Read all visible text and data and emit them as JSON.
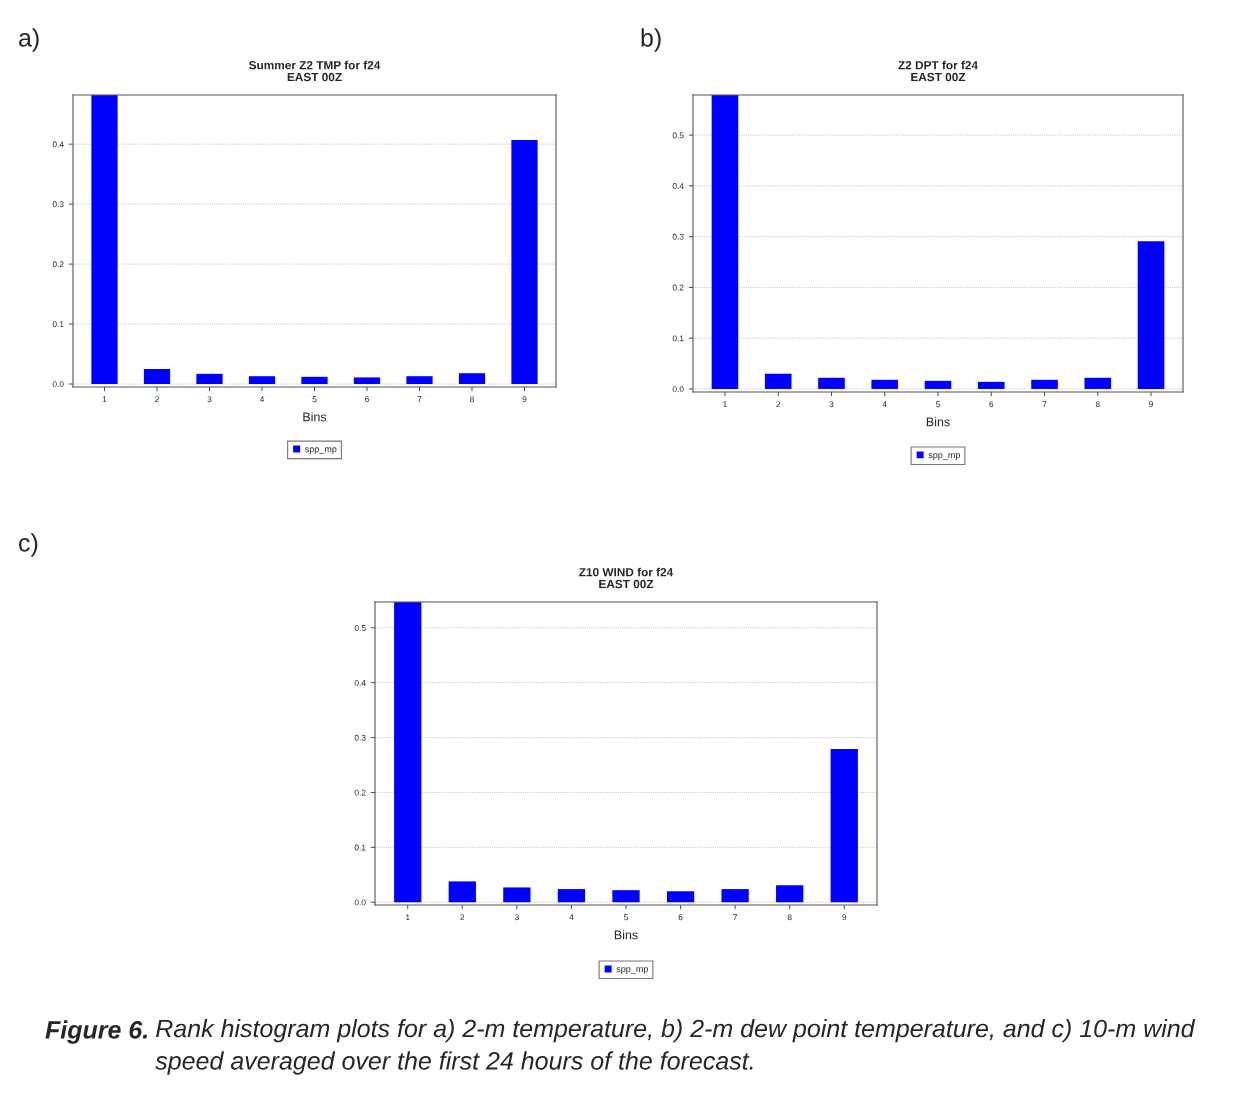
{
  "chart_data": [
    {
      "type": "bar",
      "title": "Summer Z2 TMP for f24",
      "subtitle": "EAST 00Z",
      "xlabel": "Bins",
      "categories": [
        "1",
        "2",
        "3",
        "4",
        "5",
        "6",
        "7",
        "8",
        "9"
      ],
      "series": [
        {
          "name": "spp_mp",
          "color": "#0000ff",
          "values": [
            0.482,
            0.025,
            0.017,
            0.013,
            0.012,
            0.011,
            0.013,
            0.018,
            0.407
          ]
        }
      ],
      "ylim": [
        -0.005,
        0.482
      ],
      "yticks": [
        {
          "value": 0,
          "label": "0.0"
        },
        {
          "value": 0.1,
          "label": "0.1"
        },
        {
          "value": 0.2,
          "label": "0.2"
        },
        {
          "value": 0.3,
          "label": "0.3"
        },
        {
          "value": 0.4,
          "label": "0.4"
        }
      ],
      "grid": "y",
      "legend": "bottom",
      "annotations": [
        "a)"
      ]
    },
    {
      "type": "bar",
      "title": "Z2 DPT for f24",
      "subtitle": "EAST 00Z",
      "xlabel": "Bins",
      "categories": [
        "1",
        "2",
        "3",
        "4",
        "5",
        "6",
        "7",
        "8",
        "9"
      ],
      "series": [
        {
          "name": "spp_mp",
          "color": "#0000ff",
          "values": [
            0.579,
            0.03,
            0.022,
            0.018,
            0.016,
            0.014,
            0.018,
            0.022,
            0.291
          ]
        }
      ],
      "ylim": [
        -0.006,
        0.579
      ],
      "yticks": [
        {
          "value": 0,
          "label": "0.0"
        },
        {
          "value": 0.1,
          "label": "0.1"
        },
        {
          "value": 0.2,
          "label": "0.2"
        },
        {
          "value": 0.3,
          "label": "0.3"
        },
        {
          "value": 0.4,
          "label": "0.4"
        },
        {
          "value": 0.5,
          "label": "0.5"
        }
      ],
      "grid": "y",
      "legend": "bottom",
      "annotations": [
        "b)"
      ]
    },
    {
      "type": "bar",
      "title": "Z10 WIND for f24",
      "subtitle": "EAST 00Z",
      "xlabel": "Bins",
      "categories": [
        "1",
        "2",
        "3",
        "4",
        "5",
        "6",
        "7",
        "8",
        "9"
      ],
      "series": [
        {
          "name": "spp_mp",
          "color": "#0000ff",
          "values": [
            0.547,
            0.038,
            0.027,
            0.024,
            0.022,
            0.02,
            0.024,
            0.031,
            0.279
          ]
        }
      ],
      "ylim": [
        -0.005,
        0.547
      ],
      "yticks": [
        {
          "value": 0,
          "label": "0.0"
        },
        {
          "value": 0.1,
          "label": "0.1"
        },
        {
          "value": 0.2,
          "label": "0.2"
        },
        {
          "value": 0.3,
          "label": "0.3"
        },
        {
          "value": 0.4,
          "label": "0.4"
        },
        {
          "value": 0.5,
          "label": "0.5"
        }
      ],
      "grid": "y",
      "legend": "bottom",
      "annotations": [
        "c)",
        "Figure 6.",
        "Rank histogram plots for a) 2-m temperature, b) 2-m dew point temperature, and c) 10-m wind speed averaged over the first 24 hours of the forecast."
      ]
    }
  ]
}
